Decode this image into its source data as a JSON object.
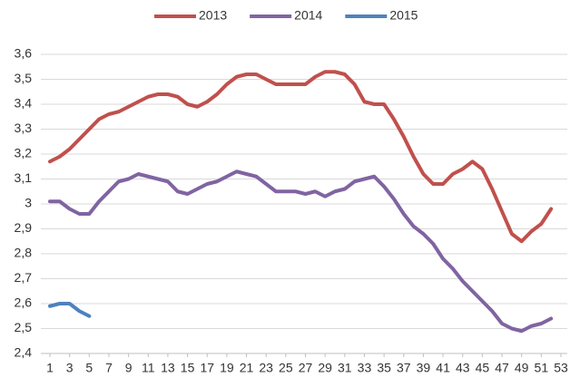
{
  "chart_data": {
    "type": "line",
    "series": [
      {
        "name": "2013",
        "color": "#c0504d",
        "x": [
          1,
          2,
          3,
          4,
          5,
          6,
          7,
          8,
          9,
          10,
          11,
          12,
          13,
          14,
          15,
          16,
          17,
          18,
          19,
          20,
          21,
          22,
          23,
          24,
          25,
          26,
          27,
          28,
          29,
          30,
          31,
          32,
          33,
          34,
          35,
          36,
          37,
          38,
          39,
          40,
          41,
          42,
          43,
          44,
          45,
          46,
          47,
          48,
          49,
          50,
          51,
          52
        ],
        "values": [
          3.17,
          3.19,
          3.22,
          3.26,
          3.3,
          3.34,
          3.36,
          3.37,
          3.39,
          3.41,
          3.43,
          3.44,
          3.44,
          3.43,
          3.4,
          3.39,
          3.41,
          3.44,
          3.48,
          3.51,
          3.52,
          3.52,
          3.5,
          3.48,
          3.48,
          3.48,
          3.48,
          3.51,
          3.53,
          3.53,
          3.52,
          3.48,
          3.41,
          3.4,
          3.4,
          3.34,
          3.27,
          3.19,
          3.12,
          3.08,
          3.08,
          3.12,
          3.14,
          3.17,
          3.14,
          3.06,
          2.97,
          2.88,
          2.85,
          2.89,
          2.92,
          2.98
        ]
      },
      {
        "name": "2014",
        "color": "#8064a2",
        "x": [
          1,
          2,
          3,
          4,
          5,
          6,
          7,
          8,
          9,
          10,
          11,
          12,
          13,
          14,
          15,
          16,
          17,
          18,
          19,
          20,
          21,
          22,
          23,
          24,
          25,
          26,
          27,
          28,
          29,
          30,
          31,
          32,
          33,
          34,
          35,
          36,
          37,
          38,
          39,
          40,
          41,
          42,
          43,
          44,
          45,
          46,
          47,
          48,
          49,
          50,
          51,
          52
        ],
        "values": [
          3.01,
          3.01,
          2.98,
          2.96,
          2.96,
          3.01,
          3.05,
          3.09,
          3.1,
          3.12,
          3.11,
          3.1,
          3.09,
          3.05,
          3.04,
          3.06,
          3.08,
          3.09,
          3.11,
          3.13,
          3.12,
          3.11,
          3.08,
          3.05,
          3.05,
          3.05,
          3.04,
          3.05,
          3.03,
          3.05,
          3.06,
          3.09,
          3.1,
          3.11,
          3.07,
          3.02,
          2.96,
          2.91,
          2.88,
          2.84,
          2.78,
          2.74,
          2.69,
          2.65,
          2.61,
          2.57,
          2.52,
          2.5,
          2.49,
          2.51,
          2.52,
          2.54
        ]
      },
      {
        "name": "2015",
        "color": "#4f81bd",
        "x": [
          1,
          2,
          3,
          4,
          5
        ],
        "values": [
          2.59,
          2.6,
          2.6,
          2.57,
          2.55
        ]
      }
    ],
    "xlim": [
      1,
      53
    ],
    "xticks": [
      1,
      3,
      5,
      7,
      9,
      11,
      13,
      15,
      17,
      19,
      21,
      23,
      25,
      27,
      29,
      31,
      33,
      35,
      37,
      39,
      41,
      43,
      45,
      47,
      49,
      51,
      53
    ],
    "ylim": [
      2.4,
      3.6
    ],
    "yticks": [
      {
        "value": 2.4,
        "label": "2,4"
      },
      {
        "value": 2.5,
        "label": "2,5"
      },
      {
        "value": 2.6,
        "label": "2,6"
      },
      {
        "value": 2.7,
        "label": "2,7"
      },
      {
        "value": 2.8,
        "label": "2,8"
      },
      {
        "value": 2.9,
        "label": "2,9"
      },
      3,
      {
        "value": 3.1,
        "label": "3,1"
      },
      {
        "value": 3.2,
        "label": "3,2"
      },
      {
        "value": 3.3,
        "label": "3,3"
      },
      {
        "value": 3.4,
        "label": "3,4"
      },
      {
        "value": 3.5,
        "label": "3,5"
      },
      {
        "value": 3.6,
        "label": "3,6"
      }
    ],
    "grid": true,
    "legend": "top"
  }
}
